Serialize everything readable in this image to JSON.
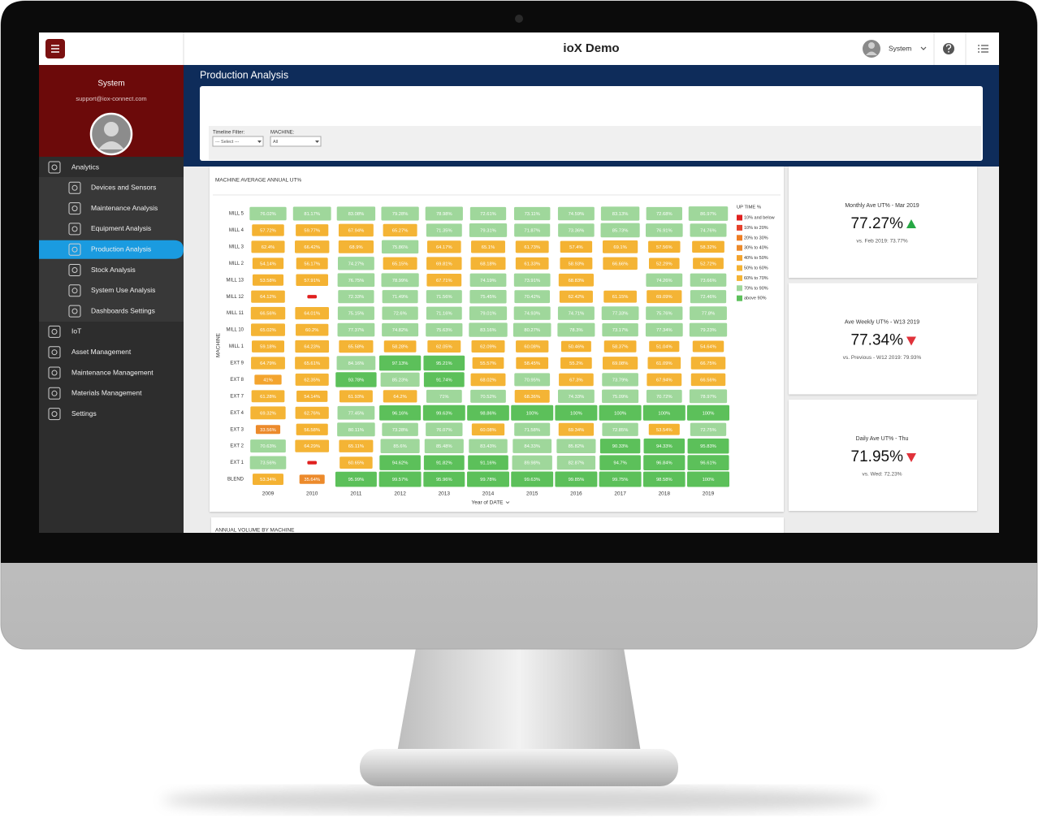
{
  "header": {
    "title": "ioX Demo",
    "user": "System"
  },
  "sidebar": {
    "user": "System",
    "email": "support@iox-connect.com",
    "menu": [
      {
        "label": "Analytics",
        "children": [
          {
            "label": "Devices and Sensors"
          },
          {
            "label": "Maintenance Analysis"
          },
          {
            "label": "Equipment Analysis"
          },
          {
            "label": "Production Analysis",
            "active": true
          },
          {
            "label": "Stock Analysis"
          },
          {
            "label": "System Use Analysis"
          },
          {
            "label": "Dashboards Settings"
          }
        ]
      },
      {
        "label": "IoT"
      },
      {
        "label": "Asset Management"
      },
      {
        "label": "Maintenance Management"
      },
      {
        "label": "Materials Management"
      },
      {
        "label": "Settings"
      }
    ]
  },
  "page": {
    "title": "Production Analysis"
  },
  "filters": [
    {
      "label": "Timeline Filter:",
      "value": "--- Select ---"
    },
    {
      "label": "MACHINE:",
      "value": "All"
    }
  ],
  "chart_data": {
    "type": "heatmap",
    "title": "MACHINE AVERAGE ANNUAL UT%",
    "x_label": "Year of DATE",
    "y_label": "MACHINE",
    "categories": [
      "2009",
      "2010",
      "2011",
      "2012",
      "2013",
      "2014",
      "2015",
      "2016",
      "2017",
      "2018",
      "2019"
    ],
    "color_bins": [
      0,
      10,
      20,
      30,
      40,
      50,
      60,
      70,
      90,
      100
    ],
    "legend": {
      "title": "UP TIME %",
      "items": [
        {
          "label": "10% and below",
          "color": "#e0201f"
        },
        {
          "label": "10% to 20%",
          "color": "#e5412b"
        },
        {
          "label": "20% to 30%",
          "color": "#ee7d24"
        },
        {
          "label": "30% to 40%",
          "color": "#ec8a2b"
        },
        {
          "label": "40% to 50%",
          "color": "#f3a42e"
        },
        {
          "label": "50% to 60%",
          "color": "#f4b232"
        },
        {
          "label": "60% to 70%",
          "color": "#f4b435"
        },
        {
          "label": "70% to 90%",
          "color": "#9fd79b"
        },
        {
          "label": "above 90%",
          "color": "#5cc05a"
        }
      ]
    },
    "series": [
      {
        "name": "MILL 5",
        "values": [
          76.02,
          81.17,
          83.08,
          79.28,
          78.98,
          72.61,
          73.11,
          74.59,
          83.13,
          72.68,
          86.97
        ],
        "value_labels": [
          "76.02%",
          "81.17%",
          "83.08%",
          "79.28%",
          "78.98%",
          "72.61%",
          "73.11%",
          "74.59%",
          "83.13%",
          "72.68%",
          "86.97%"
        ]
      },
      {
        "name": "MILL 4",
        "values": [
          57.72,
          59.77,
          67.94,
          65.27,
          71.35,
          79.31,
          71.87,
          73.36,
          85.73,
          76.91,
          74.76
        ],
        "value_labels": [
          "57.72%",
          "59.77%",
          "67.94%",
          "65.27%",
          "71.35%",
          "79.31%",
          "71.87%",
          "73.36%",
          "85.73%",
          "76.91%",
          "74.76%"
        ]
      },
      {
        "name": "MILL 3",
        "values": [
          62.4,
          66.42,
          68.9,
          75.86,
          64.17,
          65.1,
          61.73,
          57.4,
          69.1,
          57.56,
          58.32
        ],
        "value_labels": [
          "62.4%",
          "66.42%",
          "68.9%",
          "75.86%",
          "64.17%",
          "65.1%",
          "61.73%",
          "57.4%",
          "69.1%",
          "57.56%",
          "58.32%"
        ]
      },
      {
        "name": "MILL 2",
        "values": [
          54.14,
          56.17,
          74.27,
          65.15,
          69.81,
          68.18,
          61.33,
          58.93,
          66.66,
          52.29,
          52.72
        ],
        "value_labels": [
          "54.14%",
          "56.17%",
          "74.27%",
          "65.15%",
          "69.81%",
          "68.18%",
          "61.33%",
          "58.93%",
          "66.66%",
          "52.29%",
          "52.72%"
        ]
      },
      {
        "name": "MILL 13",
        "values": [
          53.58,
          57.91,
          76.75,
          78.99,
          67.71,
          74.19,
          73.91,
          68.83,
          null,
          74.26,
          73.66
        ],
        "value_labels": [
          "53.58%",
          "57.91%",
          "76.75%",
          "78.99%",
          "67.71%",
          "74.19%",
          "73.91%",
          "68.83%",
          null,
          "74.26%",
          "73.66%"
        ]
      },
      {
        "name": "MILL 12",
        "values": [
          64.12,
          5,
          72.33,
          71.49,
          71.56,
          75.45,
          70.42,
          62.42,
          61.15,
          69.09,
          72.46
        ],
        "value_labels": [
          "64.12%",
          null,
          "72.33%",
          "71.49%",
          "71.56%",
          "75.45%",
          "70.42%",
          "62.42%",
          "61.15%",
          "69.09%",
          "72.46%"
        ]
      },
      {
        "name": "MILL 11",
        "values": [
          66.56,
          64.01,
          75.15,
          72.6,
          71.16,
          79.01,
          74.93,
          74.71,
          77.33,
          75.76,
          77.8
        ],
        "value_labels": [
          "66.56%",
          "64.01%",
          "75.15%",
          "72.6%",
          "71.16%",
          "79.01%",
          "74.93%",
          "74.71%",
          "77.33%",
          "75.76%",
          "77.8%"
        ]
      },
      {
        "name": "MILL 10",
        "values": [
          65.02,
          60.2,
          77.37,
          74.82,
          75.63,
          83.16,
          80.27,
          78.3,
          73.17,
          77.34,
          79.23
        ],
        "value_labels": [
          "65.02%",
          "60.2%",
          "77.37%",
          "74.82%",
          "75.63%",
          "83.16%",
          "80.27%",
          "78.3%",
          "73.17%",
          "77.34%",
          "79.23%"
        ]
      },
      {
        "name": "MILL 1",
        "values": [
          59.18,
          64.23,
          65.58,
          58.28,
          62.05,
          62.09,
          60.08,
          50.46,
          58.37,
          51.04,
          54.64
        ],
        "value_labels": [
          "59.18%",
          "64.23%",
          "65.58%",
          "58.28%",
          "62.05%",
          "62.09%",
          "60.08%",
          "50.46%",
          "58.37%",
          "51.04%",
          "54.64%"
        ]
      },
      {
        "name": "EXT 9",
        "values": [
          64.79,
          65.61,
          84.16,
          97.13,
          95.21,
          55.57,
          58.45,
          55.2,
          69.08,
          61.09,
          66.75
        ],
        "value_labels": [
          "64.79%",
          "65.61%",
          "84.16%",
          "97.13%",
          "95.21%",
          "55.57%",
          "58.45%",
          "55.2%",
          "69.08%",
          "61.09%",
          "66.75%"
        ]
      },
      {
        "name": "EXT 8",
        "values": [
          41,
          62.35,
          93.78,
          85.23,
          91.74,
          68.02,
          70.95,
          67.3,
          73.79,
          67.94,
          66.56
        ],
        "value_labels": [
          "41%",
          "62.35%",
          "93.78%",
          "85.23%",
          "91.74%",
          "68.02%",
          "70.95%",
          "67.3%",
          "73.79%",
          "67.94%",
          "66.56%"
        ]
      },
      {
        "name": "EXT 7",
        "values": [
          61.28,
          54.14,
          61.93,
          64.2,
          71,
          70.52,
          68.36,
          74.33,
          75.09,
          70.72,
          78.97
        ],
        "value_labels": [
          "61.28%",
          "54.14%",
          "61.93%",
          "64.2%",
          "71%",
          "70.52%",
          "68.36%",
          "74.33%",
          "75.09%",
          "70.72%",
          "78.97%"
        ]
      },
      {
        "name": "EXT 4",
        "values": [
          69.32,
          62.76,
          77.45,
          96.16,
          99.63,
          98.86,
          100,
          100,
          100,
          100,
          100
        ],
        "value_labels": [
          "69.32%",
          "62.76%",
          "77.45%",
          "96.16%",
          "99.63%",
          "98.86%",
          "100%",
          "100%",
          "100%",
          "100%",
          "100%"
        ]
      },
      {
        "name": "EXT 3",
        "values": [
          33.56,
          56.58,
          80.11,
          73.28,
          76.07,
          60.08,
          71.58,
          69.34,
          72.85,
          53.54,
          72.75
        ],
        "value_labels": [
          "33.56%",
          "56.58%",
          "80.11%",
          "73.28%",
          "76.07%",
          "60.08%",
          "71.58%",
          "69.34%",
          "72.85%",
          "53.54%",
          "72.75%"
        ]
      },
      {
        "name": "EXT 2",
        "values": [
          70.63,
          64.29,
          65.11,
          85.6,
          85.48,
          83.43,
          84.33,
          85.82,
          90.33,
          94.33,
          95.83
        ],
        "value_labels": [
          "70.63%",
          "64.29%",
          "65.11%",
          "85.6%",
          "85.48%",
          "83.43%",
          "84.33%",
          "85.82%",
          "90.33%",
          "94.33%",
          "95.83%"
        ]
      },
      {
        "name": "EXT 1",
        "values": [
          73.56,
          5,
          60.65,
          94.62,
          91.82,
          91.16,
          89.98,
          82.87,
          94.7,
          96.84,
          96.61
        ],
        "value_labels": [
          "73.56%",
          null,
          "60.65%",
          "94.62%",
          "91.82%",
          "91.16%",
          "89.98%",
          "82.87%",
          "94.7%",
          "96.84%",
          "96.61%"
        ]
      },
      {
        "name": "BLEND",
        "values": [
          53.34,
          35.64,
          95.99,
          99.57,
          95.96,
          99.78,
          99.63,
          99.85,
          99.75,
          98.58,
          100
        ],
        "value_labels": [
          "53.34%",
          "35.64%",
          "95.99%",
          "99.57%",
          "95.96%",
          "99.78%",
          "99.63%",
          "99.85%",
          "99.75%",
          "98.58%",
          "100%"
        ]
      }
    ]
  },
  "kpis": [
    {
      "title": "Monthly Ave UT% - Mar 2019",
      "value": "77.27%",
      "trend": "up",
      "comparison": "vs. Feb 2019: 73.77%"
    },
    {
      "title": "Ave Weekly UT% - W13 2019",
      "value": "77.34%",
      "trend": "down",
      "comparison": "vs. Previous - W12 2019: 79.93%"
    },
    {
      "title": "Daily Ave UT% - Thu",
      "value": "71.95%",
      "trend": "down",
      "comparison": "vs. Wed: 72.23%"
    }
  ],
  "next_panel": {
    "title": "ANNUAL VOLUME BY MACHINE"
  }
}
